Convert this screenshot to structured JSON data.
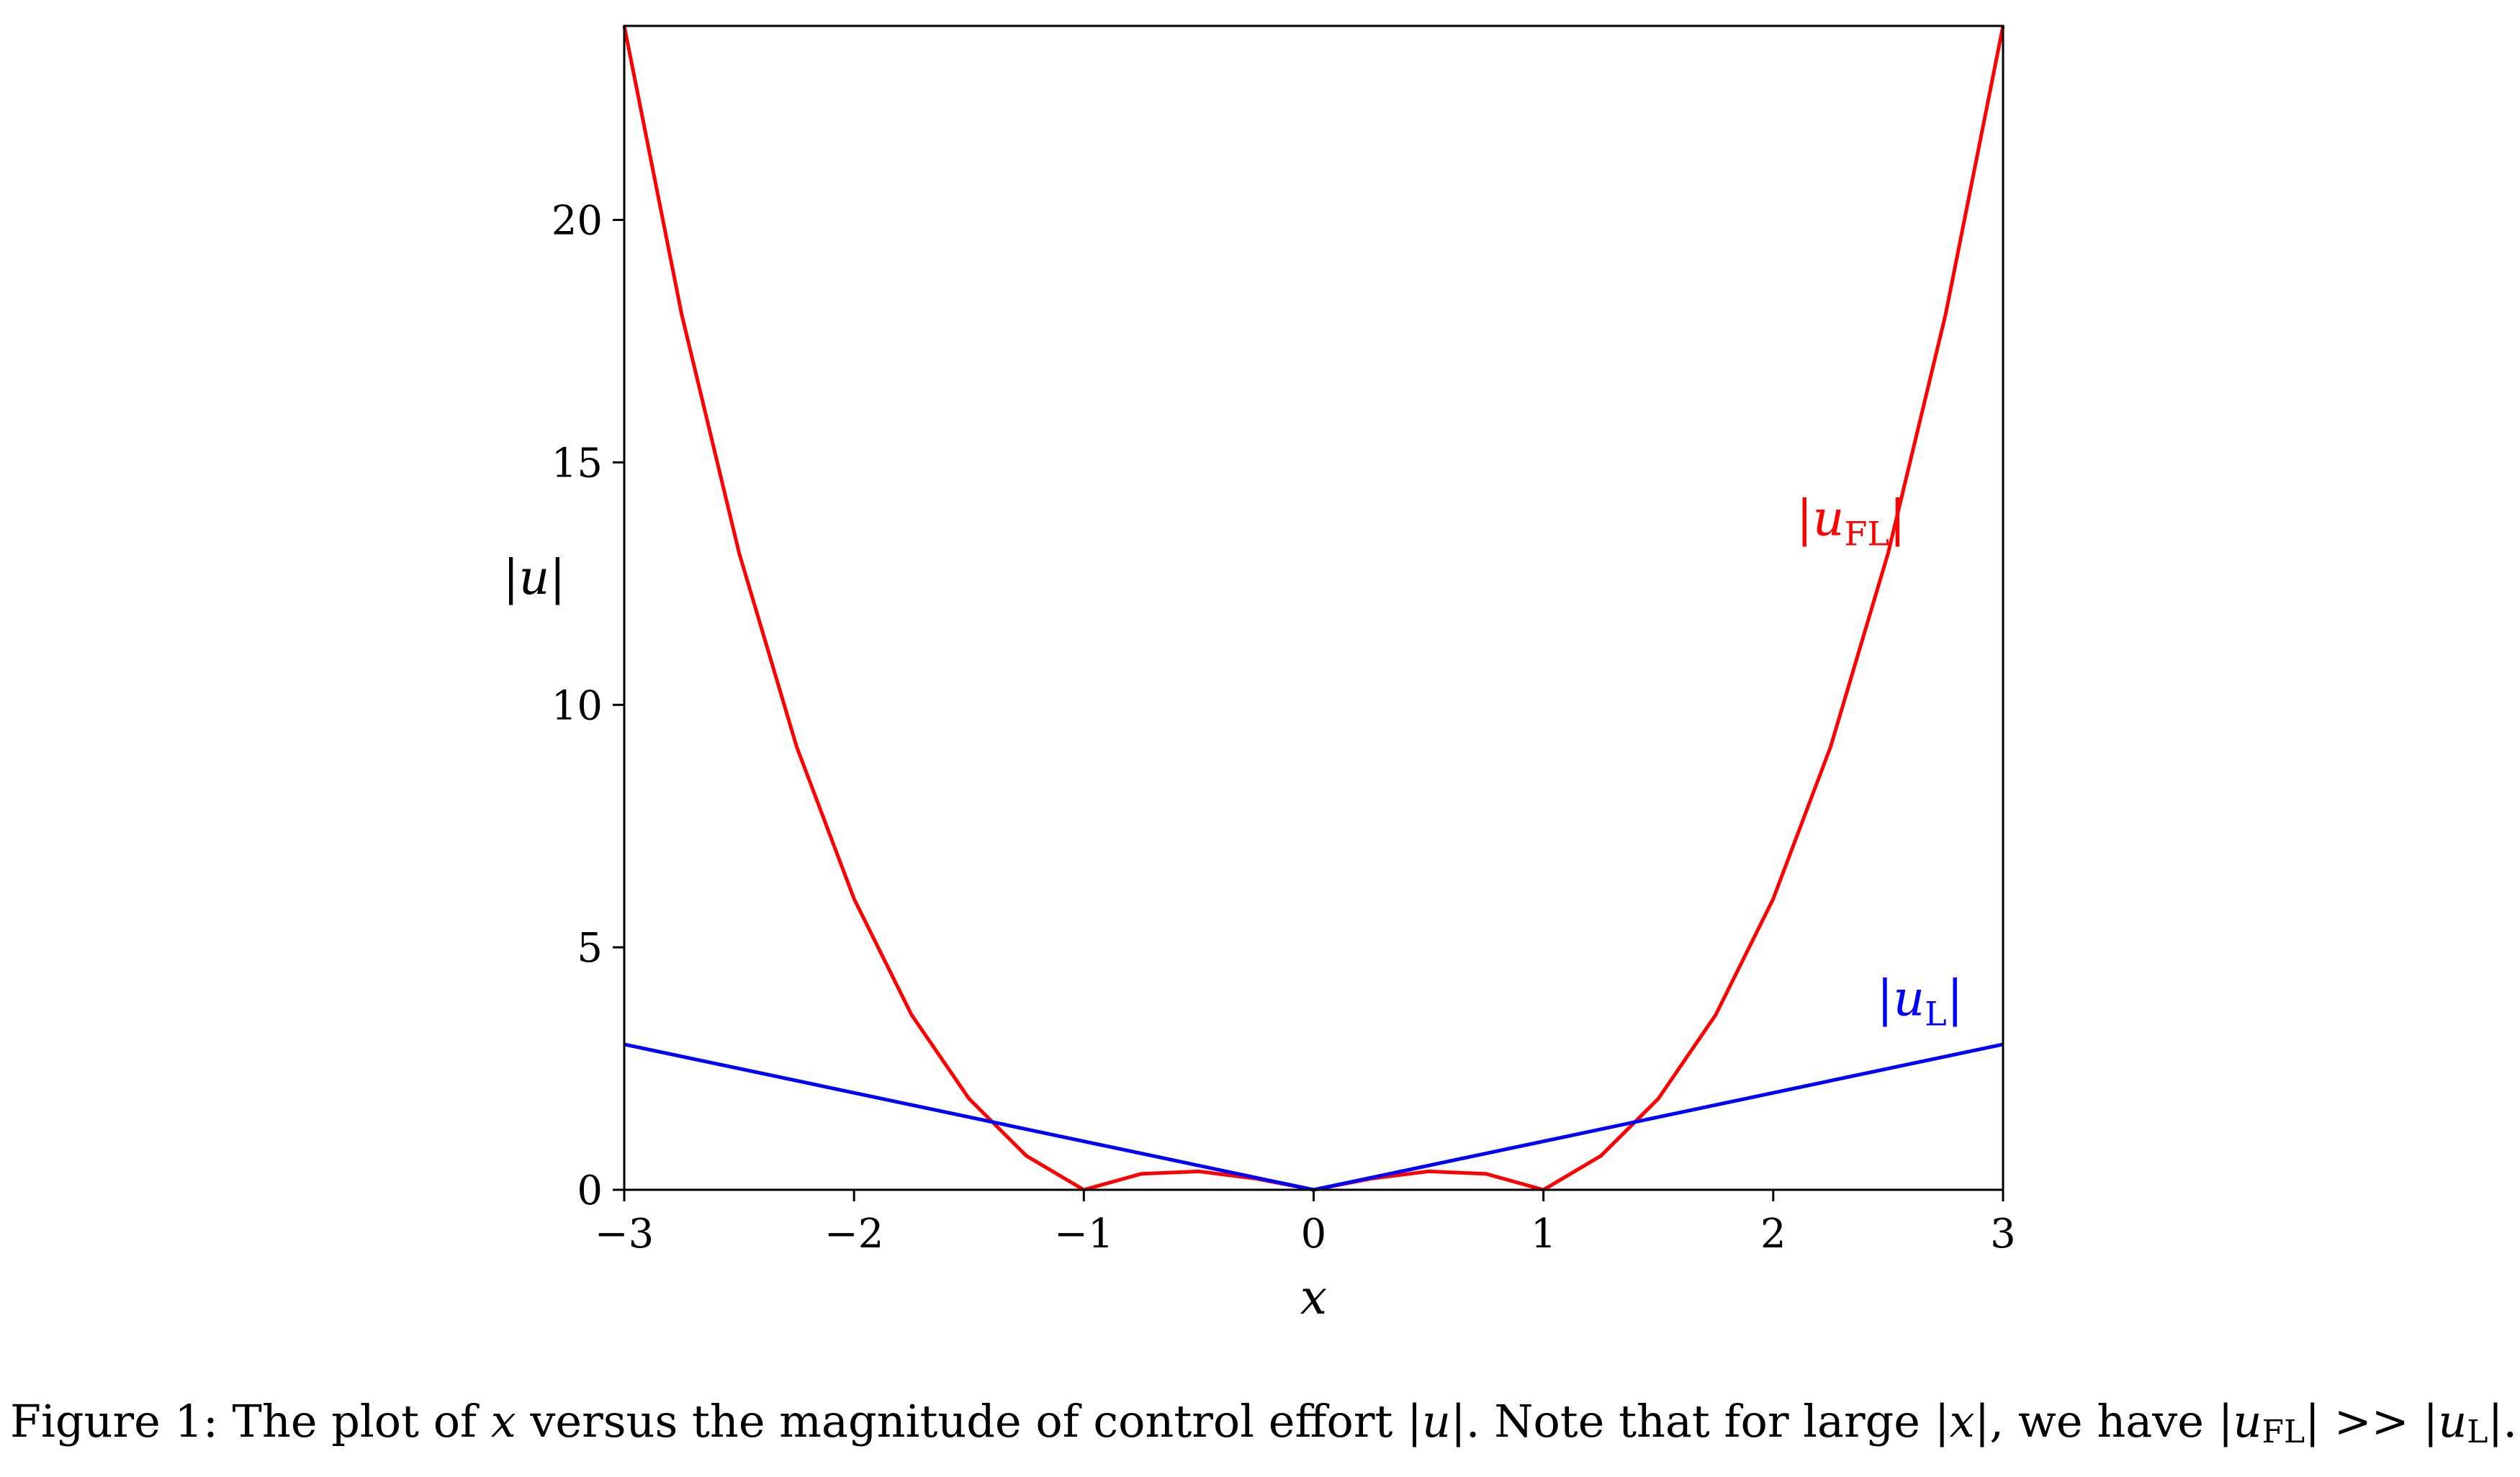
{
  "chart_data": {
    "type": "line",
    "title": "",
    "xlabel": "x",
    "ylabel": "|u|",
    "xlim": [
      -3,
      3
    ],
    "ylim": [
      0,
      24
    ],
    "x_ticks": [
      -3,
      -2,
      -1,
      0,
      1,
      2,
      3
    ],
    "x_tick_labels": [
      "−3",
      "−2",
      "−1",
      "0",
      "1",
      "2",
      "3"
    ],
    "y_ticks": [
      0,
      5,
      10,
      15,
      20
    ],
    "y_tick_labels": [
      "0",
      "5",
      "10",
      "15",
      "20"
    ],
    "grid": false,
    "legend": "none",
    "series": [
      {
        "name": "|uFL|",
        "color": "#ff0000",
        "x": [
          -3,
          -2.75,
          -2.5,
          -2.25,
          -2,
          -1.75,
          -1.5,
          -1.25,
          -1,
          -0.75,
          -0.5,
          -0.25,
          0,
          0.25,
          0.5,
          0.75,
          1,
          1.25,
          1.5,
          1.75,
          2,
          2.25,
          2.5,
          2.75,
          3
        ],
        "values": [
          24.0,
          18.05,
          13.13,
          9.14,
          6.0,
          3.61,
          1.88,
          0.7,
          0.0,
          0.33,
          0.38,
          0.23,
          0.0,
          0.23,
          0.38,
          0.33,
          0.0,
          0.7,
          1.88,
          3.61,
          6.0,
          9.14,
          13.13,
          18.05,
          24.0
        ]
      },
      {
        "name": "|uL|",
        "color": "#0000ff",
        "x": [
          -3,
          0,
          3
        ],
        "values": [
          3,
          0,
          3
        ]
      }
    ],
    "annotations": [
      {
        "series": "|uFL|",
        "text_main": "u",
        "text_sub": "FL",
        "x": 2.1,
        "y": 13.5
      },
      {
        "series": "|uL|",
        "text_main": "u",
        "text_sub": "L",
        "x": 2.45,
        "y": 3.6
      }
    ]
  },
  "caption": {
    "prefix": "Figure 1:  The plot of ",
    "var_x": "x",
    "mid1": " versus the magnitude of control effort |",
    "var_u": "u",
    "mid2": "|.  Note that for large |",
    "var_x2": "x",
    "mid3": "|, we have |",
    "var_u2": "u",
    "sub_fl": "FL",
    "mid4": "| >> |",
    "var_u3": "u",
    "sub_l": "L",
    "suffix": "|."
  }
}
